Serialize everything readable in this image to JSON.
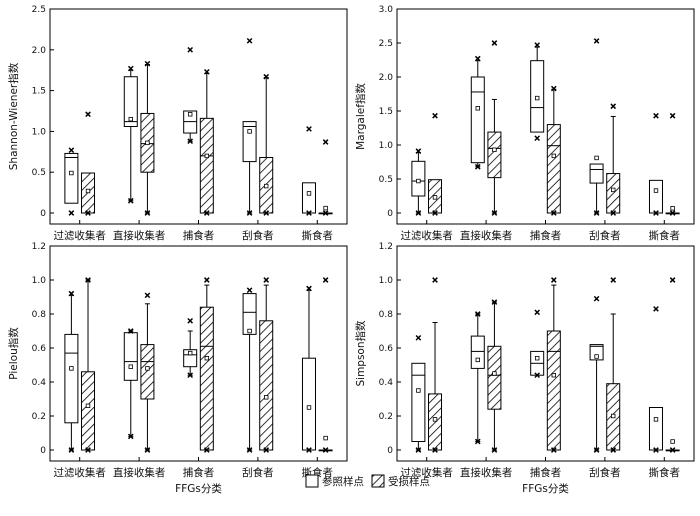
{
  "chart_data": [
    {
      "type": "box",
      "ylabel": "Shannon-Wiener指数",
      "xlabel": "",
      "ylim": [
        0,
        2.5
      ],
      "yticks": [
        "0",
        "0.5",
        "1.0",
        "1.5",
        "2.0",
        "2.5"
      ],
      "categories": [
        "过滤收集者",
        "直接收集者",
        "捕食者",
        "刮食者",
        "撕食者"
      ],
      "series": [
        {
          "name": "参照样点",
          "boxes": [
            {
              "q1": 0.12,
              "median": 0.68,
              "q3": 0.73,
              "mean": 0.49,
              "whisker_low": 0.12,
              "whisker_high": 0.73,
              "min": 0.0,
              "max": 0.77
            },
            {
              "q1": 1.06,
              "median": 1.12,
              "q3": 1.67,
              "mean": 1.15,
              "whisker_low": 0.15,
              "whisker_high": 1.75,
              "min": 0.15,
              "max": 1.77
            },
            {
              "q1": 0.98,
              "median": 1.12,
              "q3": 1.25,
              "mean": 1.21,
              "whisker_low": 0.88,
              "whisker_high": 1.25,
              "min": 0.88,
              "max": 2.0
            },
            {
              "q1": 0.63,
              "median": 1.06,
              "q3": 1.12,
              "mean": 1.0,
              "whisker_low": 0.0,
              "whisker_high": 1.12,
              "min": 0.0,
              "max": 2.11
            },
            {
              "q1": 0.0,
              "median": 0.0,
              "q3": 0.37,
              "mean": 0.24,
              "whisker_low": 0.0,
              "whisker_high": 0.37,
              "min": 0.0,
              "max": 1.03
            }
          ]
        },
        {
          "name": "受损样点",
          "boxes": [
            {
              "q1": 0.0,
              "median": 0.0,
              "q3": 0.49,
              "mean": 0.27,
              "whisker_low": 0.0,
              "whisker_high": 0.49,
              "min": 0.0,
              "max": 1.21
            },
            {
              "q1": 0.5,
              "median": 0.85,
              "q3": 1.22,
              "mean": 0.86,
              "whisker_low": 0.0,
              "whisker_high": 1.82,
              "min": 0.0,
              "max": 1.83
            },
            {
              "q1": 0.0,
              "median": 0.7,
              "q3": 1.16,
              "mean": 0.7,
              "whisker_low": 0.0,
              "whisker_high": 1.71,
              "min": 0.0,
              "max": 1.73
            },
            {
              "q1": 0.0,
              "median": 0.0,
              "q3": 0.68,
              "mean": 0.33,
              "whisker_low": 0.0,
              "whisker_high": 1.66,
              "min": 0.0,
              "max": 1.67
            },
            {
              "q1": 0.0,
              "median": 0.0,
              "q3": 0.0,
              "mean": 0.06,
              "whisker_low": 0.0,
              "whisker_high": 0.0,
              "min": 0.0,
              "max": 0.87
            }
          ]
        }
      ]
    },
    {
      "type": "box",
      "ylabel": "Margalef指数",
      "xlabel": "",
      "ylim": [
        0,
        3.0
      ],
      "yticks": [
        "0",
        "0.5",
        "1.0",
        "1.5",
        "2.0",
        "2.5",
        "3.0"
      ],
      "categories": [
        "过滤收集者",
        "直接收集者",
        "捕食者",
        "刮食者",
        "撕食者"
      ],
      "series": [
        {
          "name": "参照样点",
          "boxes": [
            {
              "q1": 0.25,
              "median": 0.47,
              "q3": 0.76,
              "mean": 0.47,
              "whisker_low": 0.0,
              "whisker_high": 0.89,
              "min": 0.0,
              "max": 0.91
            },
            {
              "q1": 0.74,
              "median": 1.78,
              "q3": 2.0,
              "mean": 1.54,
              "whisker_low": 0.68,
              "whisker_high": 2.24,
              "min": 0.68,
              "max": 2.27
            },
            {
              "q1": 1.19,
              "median": 1.55,
              "q3": 2.24,
              "mean": 1.69,
              "whisker_low": 1.19,
              "whisker_high": 2.44,
              "min": 1.1,
              "max": 2.47
            },
            {
              "q1": 0.44,
              "median": 0.64,
              "q3": 0.72,
              "mean": 0.81,
              "whisker_low": 0.0,
              "whisker_high": 0.72,
              "min": 0.0,
              "max": 2.53
            },
            {
              "q1": 0.0,
              "median": 0.0,
              "q3": 0.48,
              "mean": 0.33,
              "whisker_low": 0.0,
              "whisker_high": 0.48,
              "min": 0.0,
              "max": 1.43
            }
          ]
        },
        {
          "name": "受损样点",
          "boxes": [
            {
              "q1": 0.0,
              "median": 0.0,
              "q3": 0.49,
              "mean": 0.23,
              "whisker_low": 0.0,
              "whisker_high": 0.49,
              "min": 0.0,
              "max": 1.43
            },
            {
              "q1": 0.52,
              "median": 0.95,
              "q3": 1.19,
              "mean": 0.93,
              "whisker_low": 0.0,
              "whisker_high": 1.67,
              "min": 0.0,
              "max": 2.5
            },
            {
              "q1": 0.0,
              "median": 0.99,
              "q3": 1.3,
              "mean": 0.84,
              "whisker_low": 0.0,
              "whisker_high": 1.82,
              "min": 0.0,
              "max": 1.83
            },
            {
              "q1": 0.0,
              "median": 0.0,
              "q3": 0.58,
              "mean": 0.34,
              "whisker_low": 0.0,
              "whisker_high": 1.42,
              "min": 0.0,
              "max": 1.57
            },
            {
              "q1": 0.0,
              "median": 0.0,
              "q3": 0.0,
              "mean": 0.07,
              "whisker_low": 0.0,
              "whisker_high": 0.0,
              "min": 0.0,
              "max": 1.43
            }
          ]
        }
      ]
    },
    {
      "type": "box",
      "ylabel": "Pielou指数",
      "xlabel": "FFGs分类",
      "ylim": [
        0,
        1.2
      ],
      "yticks": [
        "0",
        "0.2",
        "0.4",
        "0.6",
        "0.8",
        "1.0",
        "1.2"
      ],
      "categories": [
        "过滤收集者",
        "直接收集者",
        "捕食者",
        "刮食者",
        "撕食者"
      ],
      "series": [
        {
          "name": "参照样点",
          "boxes": [
            {
              "q1": 0.16,
              "median": 0.57,
              "q3": 0.68,
              "mean": 0.48,
              "whisker_low": 0.0,
              "whisker_high": 0.91,
              "min": 0.0,
              "max": 0.92
            },
            {
              "q1": 0.41,
              "median": 0.52,
              "q3": 0.69,
              "mean": 0.49,
              "whisker_low": 0.08,
              "whisker_high": 0.7,
              "min": 0.08,
              "max": 0.7
            },
            {
              "q1": 0.49,
              "median": 0.56,
              "q3": 0.59,
              "mean": 0.57,
              "whisker_low": 0.44,
              "whisker_high": 0.7,
              "min": 0.44,
              "max": 0.76
            },
            {
              "q1": 0.68,
              "median": 0.81,
              "q3": 0.92,
              "mean": 0.7,
              "whisker_low": 0.0,
              "whisker_high": 0.92,
              "min": 0.0,
              "max": 0.94
            },
            {
              "q1": 0.0,
              "median": 0.0,
              "q3": 0.54,
              "mean": 0.25,
              "whisker_low": 0.0,
              "whisker_high": 0.94,
              "min": 0.0,
              "max": 0.95
            }
          ]
        },
        {
          "name": "受损样点",
          "boxes": [
            {
              "q1": 0.0,
              "median": 0.0,
              "q3": 0.46,
              "mean": 0.26,
              "whisker_low": 0.0,
              "whisker_high": 1.0,
              "min": 0.0,
              "max": 1.0
            },
            {
              "q1": 0.3,
              "median": 0.52,
              "q3": 0.62,
              "mean": 0.48,
              "whisker_low": 0.0,
              "whisker_high": 0.86,
              "min": 0.0,
              "max": 0.91
            },
            {
              "q1": 0.0,
              "median": 0.61,
              "q3": 0.84,
              "mean": 0.54,
              "whisker_low": 0.0,
              "whisker_high": 0.97,
              "min": 0.0,
              "max": 1.0
            },
            {
              "q1": 0.0,
              "median": 0.0,
              "q3": 0.76,
              "mean": 0.31,
              "whisker_low": 0.0,
              "whisker_high": 0.97,
              "min": 0.0,
              "max": 1.0
            },
            {
              "q1": 0.0,
              "median": 0.0,
              "q3": 0.0,
              "mean": 0.07,
              "whisker_low": 0.0,
              "whisker_high": 0.0,
              "min": 0.0,
              "max": 1.0
            }
          ]
        }
      ]
    },
    {
      "type": "box",
      "ylabel": "Simpson指数",
      "xlabel": "FFGs分类",
      "ylim": [
        0,
        1.2
      ],
      "yticks": [
        "0",
        "0.2",
        "0.4",
        "0.6",
        "0.8",
        "1.0",
        "1.2"
      ],
      "categories": [
        "过滤收集者",
        "直接收集者",
        "捕食者",
        "刮食者",
        "撕食者"
      ],
      "series": [
        {
          "name": "参照样点",
          "boxes": [
            {
              "q1": 0.05,
              "median": 0.44,
              "q3": 0.51,
              "mean": 0.35,
              "whisker_low": 0.0,
              "whisker_high": 0.51,
              "min": 0.0,
              "max": 0.66
            },
            {
              "q1": 0.48,
              "median": 0.58,
              "q3": 0.67,
              "mean": 0.53,
              "whisker_low": 0.05,
              "whisker_high": 0.8,
              "min": 0.05,
              "max": 0.8
            },
            {
              "q1": 0.44,
              "median": 0.51,
              "q3": 0.58,
              "mean": 0.54,
              "whisker_low": 0.44,
              "whisker_high": 0.58,
              "min": 0.44,
              "max": 0.81
            },
            {
              "q1": 0.53,
              "median": 0.61,
              "q3": 0.62,
              "mean": 0.55,
              "whisker_low": 0.0,
              "whisker_high": 0.62,
              "min": 0.0,
              "max": 0.89
            },
            {
              "q1": 0.0,
              "median": 0.0,
              "q3": 0.25,
              "mean": 0.18,
              "whisker_low": 0.0,
              "whisker_high": 0.25,
              "min": 0.0,
              "max": 0.83
            }
          ]
        },
        {
          "name": "受损样点",
          "boxes": [
            {
              "q1": 0.0,
              "median": 0.0,
              "q3": 0.33,
              "mean": 0.18,
              "whisker_low": 0.0,
              "whisker_high": 0.75,
              "min": 0.0,
              "max": 1.0
            },
            {
              "q1": 0.24,
              "median": 0.44,
              "q3": 0.61,
              "mean": 0.45,
              "whisker_low": 0.0,
              "whisker_high": 0.87,
              "min": 0.0,
              "max": 0.87
            },
            {
              "q1": 0.0,
              "median": 0.58,
              "q3": 0.7,
              "mean": 0.44,
              "whisker_low": 0.0,
              "whisker_high": 0.97,
              "min": 0.0,
              "max": 1.0
            },
            {
              "q1": 0.0,
              "median": 0.0,
              "q3": 0.39,
              "mean": 0.2,
              "whisker_low": 0.0,
              "whisker_high": 0.8,
              "min": 0.0,
              "max": 1.0
            },
            {
              "q1": 0.0,
              "median": 0.0,
              "q3": 0.0,
              "mean": 0.05,
              "whisker_low": 0.0,
              "whisker_high": 0.0,
              "min": 0.0,
              "max": 1.0
            }
          ]
        }
      ]
    }
  ],
  "legend": {
    "items": [
      {
        "label": "参照样点",
        "pattern": "plain"
      },
      {
        "label": "受损样点",
        "pattern": "hatched"
      }
    ]
  }
}
